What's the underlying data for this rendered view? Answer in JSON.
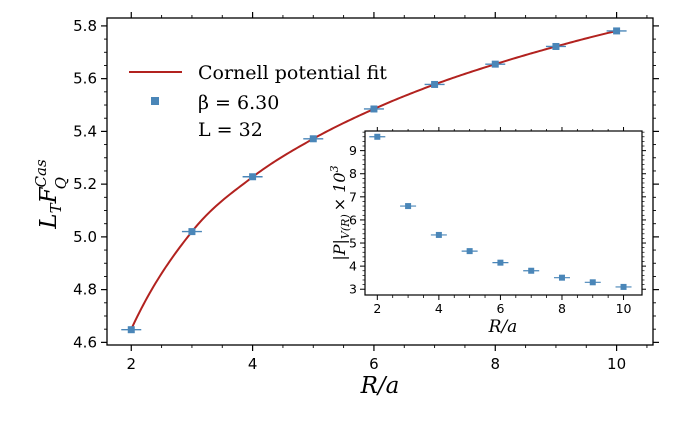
{
  "chart_data": [
    {
      "type": "line",
      "id": "main",
      "xlabel": "R/a",
      "ylabel_parts": {
        "base": "L",
        "base_sub": "T",
        "sym": "F",
        "sym_sup": "Cas",
        "sym_sub": "Q"
      },
      "xlim": [
        1.6,
        10.6
      ],
      "ylim": [
        4.59,
        5.83
      ],
      "x_ticks": [
        2,
        4,
        6,
        8,
        10
      ],
      "y_ticks": [
        "4.6",
        "4.8",
        "5.0",
        "5.2",
        "5.4",
        "5.6",
        "5.8"
      ],
      "grid": false,
      "legend": {
        "placement": "top-left",
        "fit_label": "Cornell potential fit",
        "data_label_line1": "β = 6.30",
        "data_label_line2": "L = 32"
      },
      "fit": {
        "name": "Cornell potential fit",
        "color": "#b2221f",
        "x_start": 2.0,
        "x_end": 10.0,
        "anchors": {
          "x": [
            2,
            3,
            4,
            5,
            6,
            7,
            8,
            9,
            10
          ],
          "y": [
            4.65,
            5.02,
            5.227,
            5.372,
            5.485,
            5.578,
            5.655,
            5.722,
            5.781
          ]
        }
      },
      "series": [
        {
          "marker_color": "#4a86b8",
          "x": [
            2,
            3,
            4,
            5,
            6,
            7,
            8,
            9,
            10
          ],
          "y": [
            4.648,
            5.02,
            5.228,
            5.372,
            5.485,
            5.578,
            5.655,
            5.722,
            5.781
          ]
        }
      ]
    },
    {
      "type": "scatter",
      "id": "inset",
      "xlabel": "R/a",
      "ylabel_parts": {
        "abs": "|P|",
        "sub": "V(R)",
        "times": "× 10",
        "exp": "3"
      },
      "xlim": [
        1.6,
        10.6
      ],
      "ylim": [
        2.75,
        9.85
      ],
      "x_ticks": [
        2,
        4,
        6,
        8,
        10
      ],
      "y_ticks": [
        3,
        4,
        5,
        6,
        7,
        8,
        9
      ],
      "grid": false,
      "series": [
        {
          "marker_color": "#4a86b8",
          "x": [
            2,
            3,
            4,
            5,
            6,
            7,
            8,
            9,
            10
          ],
          "y": [
            9.6,
            6.6,
            5.35,
            4.65,
            4.15,
            3.8,
            3.5,
            3.3,
            3.1
          ]
        }
      ]
    }
  ]
}
